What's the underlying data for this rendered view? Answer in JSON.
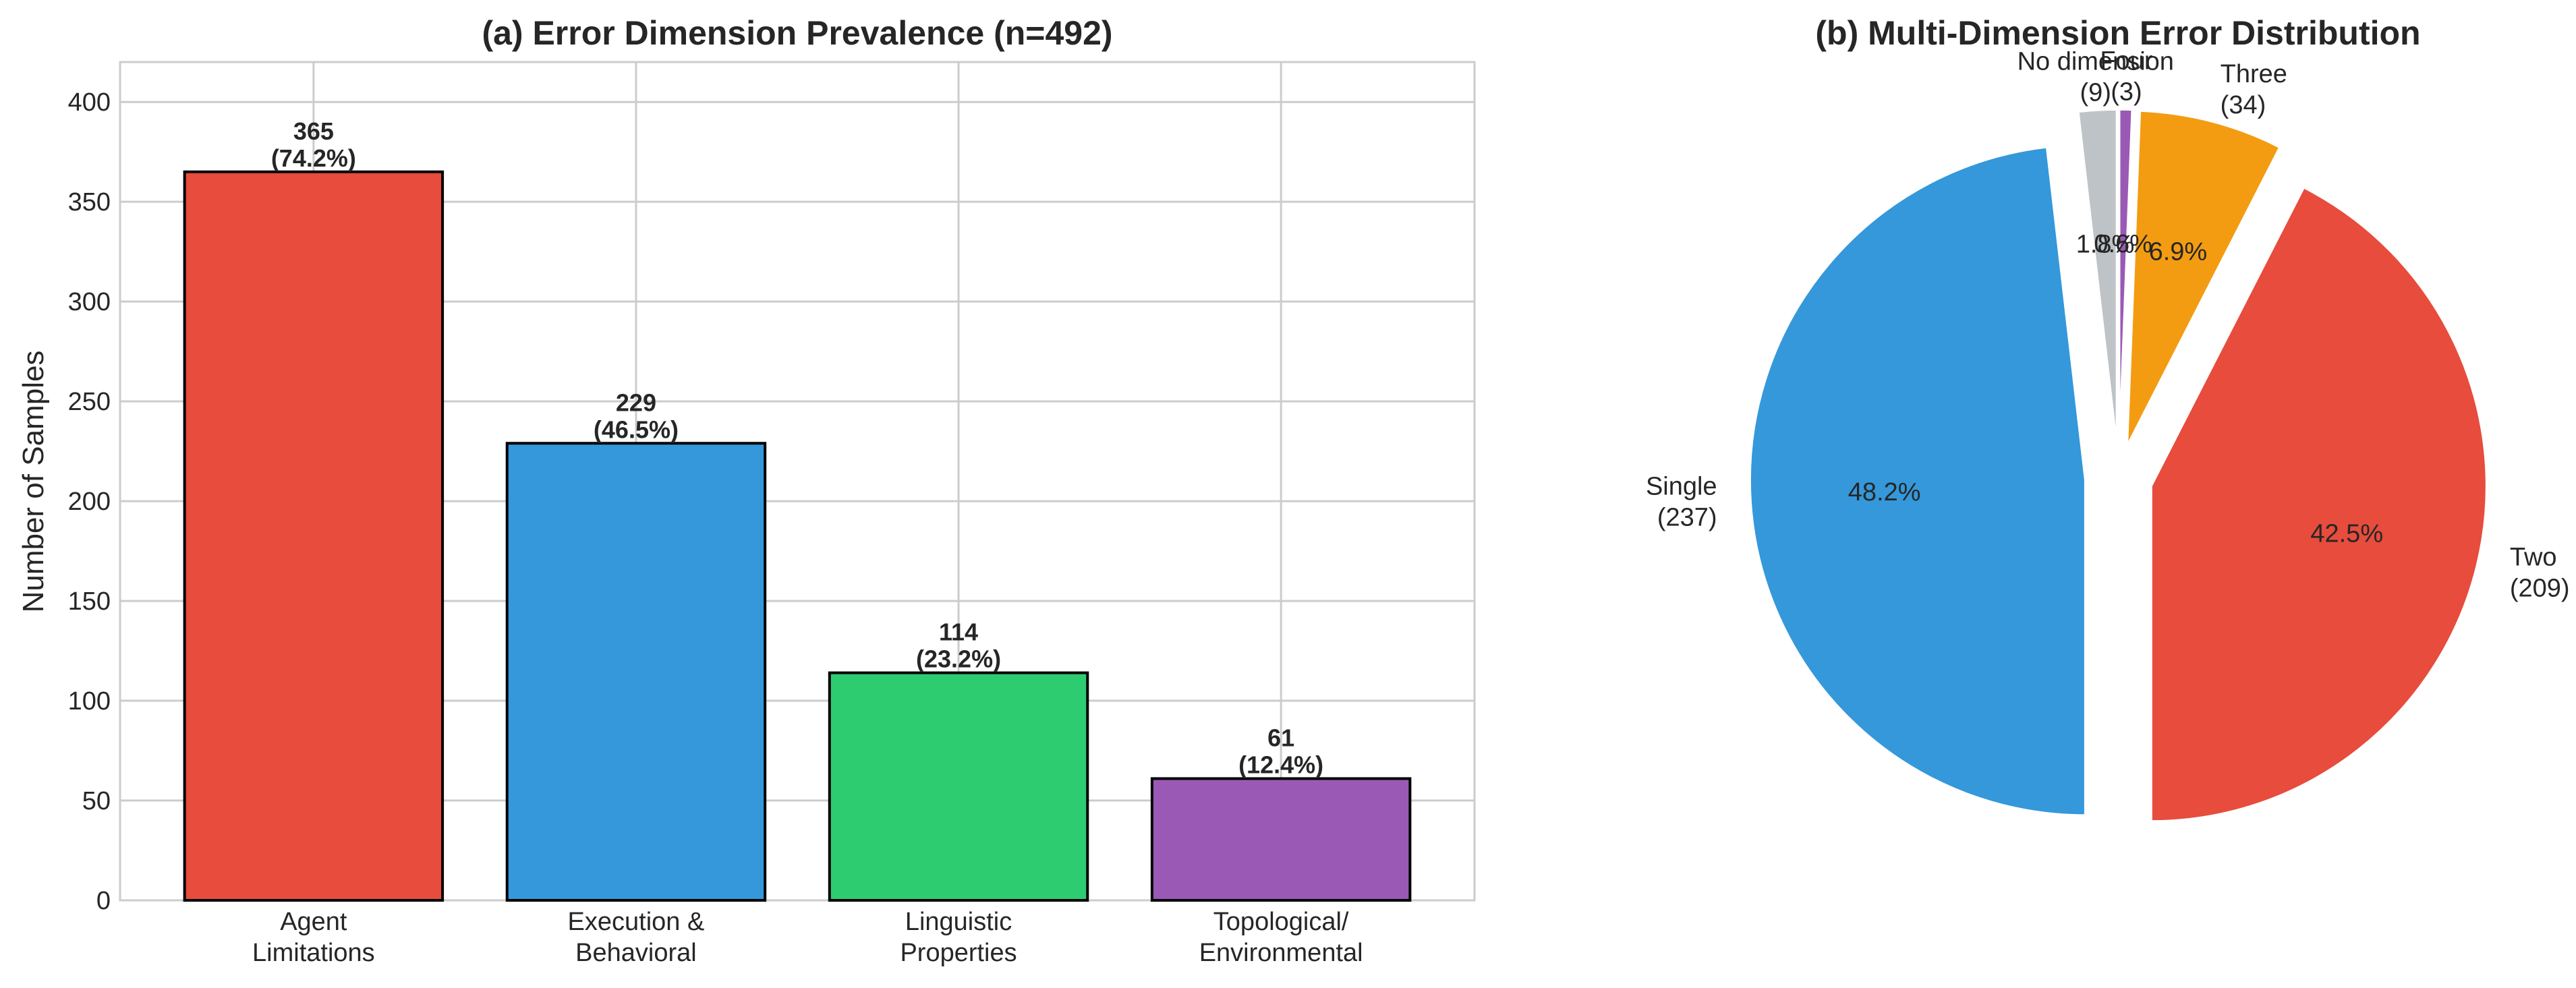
{
  "chart_data": [
    {
      "type": "bar",
      "title": "(a) Error Dimension Prevalence (n=492)",
      "xlabel": "",
      "ylabel": "Number of Samples",
      "ylim": [
        0,
        420
      ],
      "yticks": [
        0,
        50,
        100,
        150,
        200,
        250,
        300,
        350,
        400
      ],
      "grid": true,
      "categories": [
        [
          "Agent",
          "Limitations"
        ],
        [
          "Execution &",
          "Behavioral"
        ],
        [
          "Linguistic",
          "Properties"
        ],
        [
          "Topological/",
          "Environmental"
        ]
      ],
      "values": [
        365,
        229,
        114,
        61
      ],
      "data_labels": [
        [
          "365",
          "(74.2%)"
        ],
        [
          "229",
          "(46.5%)"
        ],
        [
          "114",
          "(23.2%)"
        ],
        [
          "61",
          "(12.4%)"
        ]
      ],
      "colors": [
        "#e74c3c",
        "#3498db",
        "#2ecc71",
        "#9b59b6"
      ]
    },
    {
      "type": "pie",
      "title": "(b) Multi-Dimension Error Distribution",
      "slices": [
        {
          "name": "No dimension",
          "count_label": "(9)",
          "value": 9,
          "pct_label": "1.8%",
          "color": "#bdc3c7"
        },
        {
          "name": "Single",
          "count_label": "(237)",
          "value": 237,
          "pct_label": "48.2%",
          "color": "#3498db"
        },
        {
          "name": "Two",
          "count_label": "(209)",
          "value": 209,
          "pct_label": "42.5%",
          "color": "#e74c3c"
        },
        {
          "name": "Three",
          "count_label": "(34)",
          "value": 34,
          "pct_label": "6.9%",
          "color": "#f39c12"
        },
        {
          "name": "Four",
          "count_label": "(3)",
          "value": 3,
          "pct_label": "0.6%",
          "color": "#9b59b6"
        }
      ],
      "start_angle_deg": 90,
      "direction": "counterclockwise",
      "exploded": true
    }
  ]
}
